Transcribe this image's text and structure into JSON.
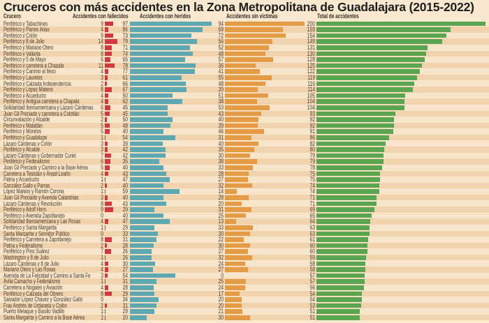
{
  "chart_data": {
    "type": "bar",
    "title": "Cruceros con más accidentes en la Zona Metropolitana de Guadalajara (2015-2022)",
    "category_header": "Crucero",
    "categories": [
      "Periférico y Tabachines",
      "Periférico y Parres Arias",
      "Periférico y Colón",
      "Periférico y 8 de Julio",
      "Periférico y Mariano Otero",
      "Periférico y Vallarta",
      "Periférico y 5 de Mayo",
      "Periférico y carretera a Chapala",
      "Periférico y Camino al Iteso",
      "Periférico y Laureles",
      "Periférico y Calzada Independencia",
      "Periférico y López Mateos",
      "Periférico y Acueducto",
      "Periférico y Antigua carretera a Chapala",
      "Solidaridad Iberoamericana  y Lázaro Cárdenas",
      "Juan Gil Preciado y  carretera a Colotlán",
      "Circunvalación y Alcalde",
      "Periférico y Matatlán",
      "Periférico y Morelos",
      "Periférico y Guadalupe",
      "Lázaro Cárdenas y Colón",
      "Periférico y Alcalde",
      "Lázaro Cárdenas y Gobernador Curiel",
      "Periférico y Federalismo",
      "Juan Gil Preciado y Camino a la Base Aérea",
      "Carretera a Tesistán y Ángel Leaño",
      "Patria y Acueducto",
      "González Gallo y Parras",
      "López Mateos y Ramón Corona",
      "Juan Gil Preciado y Avenida Calandrias",
      "Lázaro Cárdenas  y Revolución",
      "Periférico y Adolf Horn",
      "Periférico  y Avenida Zapotlanejo",
      "Solidaridad Iberoamericana y Las Rosas",
      "Periférico y Santa Margarita",
      "Santa Margarita y Servidor Público",
      "Periférico y Carretera a Zapotlanejo",
      "Patria y Federalismo",
      "Periférico y Pino Suárez",
      "Washington y 8 de Julio",
      "Lázaro Cárdenas y 8 de Julio",
      "Mariano Otero y Las Rosas",
      "Avenida de La Felicidad y Camino a Santa Fe",
      "Ávila Camacho y Federalismo",
      "Carretera a Nogales y Aviación",
      "Periférico y Calzada del Obrero",
      "Salvador López Chávez y González Gallo",
      "Fray Andrés de Urdaneta y Colón",
      "Puerto Melaque y Basilio Vadillo",
      "Santa Margarita y Camino a la Base Aérea"
    ],
    "series": [
      {
        "name": "Accidentes con fallecidos",
        "color": "#d2383f",
        "values": [
          9,
          4,
          9,
          14,
          8,
          8,
          6,
          11,
          4,
          3,
          2,
          8,
          4,
          4,
          6,
          5,
          2,
          5,
          5,
          1,
          3,
          3,
          7,
          6,
          5,
          4,
          1,
          2,
          1,
          3,
          8,
          9,
          0,
          4,
          1,
          0,
          8,
          2,
          7,
          1,
          4,
          4,
          3,
          1,
          4,
          8,
          0,
          2,
          1,
          1
        ]
      },
      {
        "name": "Accidentes con heridos",
        "color": "#5ea8b1",
        "values": [
          97,
          86,
          73,
          79,
          71,
          74,
          65,
          78,
          77,
          61,
          66,
          67,
          50,
          62,
          45,
          45,
          50,
          48,
          40,
          54,
          39,
          42,
          42,
          35,
          40,
          43,
          47,
          40,
          59,
          40,
          43,
          29,
          40,
          47,
          29,
          33,
          31,
          28,
          26,
          26,
          30,
          27,
          54,
          31,
          28,
          29,
          34,
          31,
          29,
          20
        ]
      },
      {
        "name": "Accidentes sin víctimas",
        "color": "#e59b45",
        "values": [
          94,
          69,
          72,
          56,
          52,
          48,
          57,
          36,
          41,
          55,
          48,
          39,
          51,
          38,
          53,
          43,
          40,
          39,
          46,
          31,
          40,
          35,
          30,
          38,
          33,
          28,
          27,
          32,
          14,
          28,
          20,
          31,
          25,
          13,
          33,
          30,
          22,
          30,
          27,
          32,
          24,
          27,
          0,
          25,
          24,
          17,
          20,
          20,
          21,
          30
        ]
      },
      {
        "name": "Total de accidentes",
        "color": "#5aa552",
        "values": [
          200,
          159,
          154,
          149,
          131,
          130,
          128,
          125,
          122,
          119,
          116,
          114,
          105,
          104,
          104,
          93,
          92,
          92,
          91,
          86,
          82,
          80,
          79,
          79,
          78,
          75,
          75,
          74,
          74,
          71,
          71,
          69,
          65,
          64,
          63,
          63,
          61,
          60,
          60,
          59,
          58,
          58,
          57,
          57,
          56,
          54,
          54,
          53,
          51,
          51
        ]
      }
    ],
    "grid": false,
    "legend": "column headers"
  }
}
